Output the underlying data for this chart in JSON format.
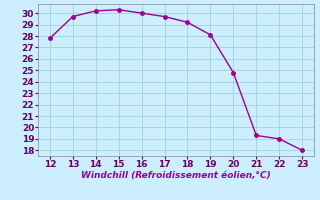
{
  "x": [
    12,
    13,
    14,
    15,
    16,
    17,
    18,
    19,
    20,
    21,
    22,
    23
  ],
  "y": [
    27.8,
    29.7,
    30.2,
    30.3,
    30.0,
    29.7,
    29.2,
    28.1,
    24.8,
    19.3,
    19.0,
    18.0
  ],
  "line_color": "#990099",
  "marker_color": "#990099",
  "bg_color": "#cceeff",
  "grid_color": "#99cccc",
  "xlabel": "Windchill (Refroidissement éolien,°C)",
  "xlim": [
    11.5,
    23.5
  ],
  "ylim": [
    17.5,
    30.8
  ],
  "xticks": [
    12,
    13,
    14,
    15,
    16,
    17,
    18,
    19,
    20,
    21,
    22,
    23
  ],
  "yticks": [
    18,
    19,
    20,
    21,
    22,
    23,
    24,
    25,
    26,
    27,
    28,
    29,
    30
  ],
  "xlabel_fontsize": 6.5,
  "tick_fontsize": 6.5,
  "line_width": 1.0,
  "marker_size": 2.5
}
